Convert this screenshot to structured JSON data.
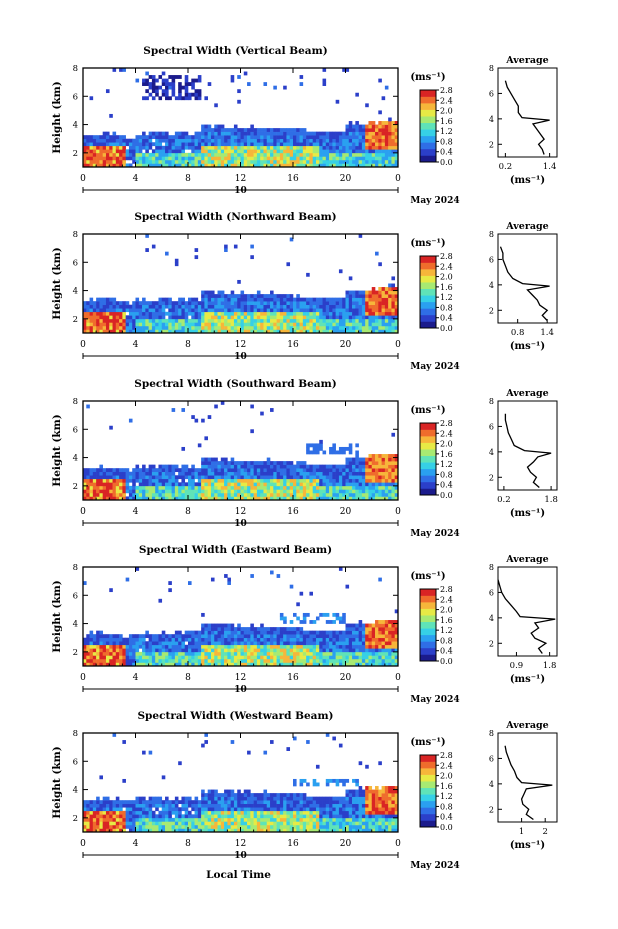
{
  "page": {
    "xaxis_label": "Local Time",
    "date_label": "May 2024",
    "day_marker": "10",
    "colorbar_unit": "(ms⁻¹)",
    "average_title": "Average",
    "average_unit": "(ms⁻¹)",
    "ylabel": "Height (km)"
  },
  "palette": [
    "#1b1b8c",
    "#2b3fc9",
    "#2f6ee6",
    "#2aa0f0",
    "#36d0e6",
    "#5fe3b8",
    "#a7ea72",
    "#e7ea45",
    "#f6b63a",
    "#ef6c2c",
    "#d92424"
  ],
  "chart_data": [
    {
      "type": "heatmap",
      "title": "Spectral Width (Vertical Beam)",
      "xlabel": "Local Time",
      "ylabel": "Height (km)",
      "xlim": [
        0,
        24
      ],
      "ylim": [
        1,
        8
      ],
      "xticks": [
        "0",
        "4",
        "8",
        "12",
        "16",
        "20",
        "0"
      ],
      "yticks": [
        "2",
        "4",
        "6",
        "8"
      ],
      "colorbar": {
        "range": [
          0,
          2.8
        ],
        "ticks": [
          "0.0",
          "0.4",
          "0.8",
          "1.2",
          "1.6",
          "2.0",
          "2.4",
          "2.8"
        ]
      },
      "average": {
        "xticks": [
          "0.2",
          "1.4"
        ],
        "xlim": [
          0,
          1.6
        ],
        "heights": [
          1.2,
          1.6,
          2.0,
          2.4,
          2.8,
          3.2,
          3.6,
          3.9,
          4.1,
          4.5,
          5.0,
          5.5,
          6.0,
          6.5,
          7.0
        ],
        "values": [
          1.25,
          1.2,
          1.1,
          1.25,
          1.15,
          1.05,
          0.95,
          1.4,
          0.65,
          0.55,
          0.55,
          0.45,
          0.35,
          0.25,
          0.2
        ]
      }
    },
    {
      "type": "heatmap",
      "title": "Spectral Width (Northward Beam)",
      "xlabel": "Local Time",
      "ylabel": "Height (km)",
      "xlim": [
        0,
        24
      ],
      "ylim": [
        1,
        8
      ],
      "xticks": [
        "0",
        "4",
        "8",
        "12",
        "16",
        "20",
        "0"
      ],
      "yticks": [
        "2",
        "4",
        "6",
        "8"
      ],
      "colorbar": {
        "range": [
          0,
          2.8
        ],
        "ticks": [
          "0.0",
          "0.4",
          "0.8",
          "1.2",
          "1.6",
          "2.0",
          "2.4",
          "2.8"
        ]
      },
      "average": {
        "xticks": [
          "0.8",
          "1.4"
        ],
        "xlim": [
          0.4,
          1.6
        ],
        "heights": [
          1.2,
          1.6,
          2.0,
          2.4,
          2.8,
          3.2,
          3.6,
          3.9,
          4.1,
          4.5,
          5.0,
          5.5,
          6.0,
          6.5,
          7.0
        ],
        "values": [
          1.4,
          1.3,
          1.4,
          1.25,
          1.2,
          1.1,
          1.0,
          1.45,
          0.9,
          0.7,
          0.6,
          0.55,
          0.5,
          0.5,
          0.45
        ]
      }
    },
    {
      "type": "heatmap",
      "title": "Spectral Width (Southward Beam)",
      "xlabel": "Local Time",
      "ylabel": "Height (km)",
      "xlim": [
        0,
        24
      ],
      "ylim": [
        1,
        8
      ],
      "xticks": [
        "0",
        "4",
        "8",
        "12",
        "16",
        "20",
        "0"
      ],
      "yticks": [
        "2",
        "4",
        "6",
        "8"
      ],
      "colorbar": {
        "range": [
          0,
          2.8
        ],
        "ticks": [
          "0.0",
          "0.4",
          "0.8",
          "1.2",
          "1.6",
          "2.0",
          "2.4",
          "2.8"
        ]
      },
      "average": {
        "xticks": [
          "0.2",
          "1.8"
        ],
        "xlim": [
          0,
          2.0
        ],
        "heights": [
          1.2,
          1.6,
          2.0,
          2.4,
          2.8,
          3.2,
          3.6,
          3.9,
          4.1,
          4.5,
          5.0,
          5.5,
          6.0,
          6.5,
          7.0
        ],
        "values": [
          1.4,
          1.2,
          1.3,
          1.1,
          1.0,
          1.2,
          1.35,
          1.8,
          0.9,
          0.55,
          0.45,
          0.35,
          0.3,
          0.25,
          0.25
        ]
      }
    },
    {
      "type": "heatmap",
      "title": "Spectral Width (Eastward Beam)",
      "xlabel": "Local Time",
      "ylabel": "Height (km)",
      "xlim": [
        0,
        24
      ],
      "ylim": [
        1,
        8
      ],
      "xticks": [
        "0",
        "4",
        "8",
        "12",
        "16",
        "20",
        "0"
      ],
      "yticks": [
        "2",
        "4",
        "6",
        "8"
      ],
      "colorbar": {
        "range": [
          0,
          2.8
        ],
        "ticks": [
          "0.0",
          "0.4",
          "0.8",
          "1.2",
          "1.6",
          "2.0",
          "2.4",
          "2.8"
        ]
      },
      "average": {
        "xticks": [
          "0.9",
          "1.8"
        ],
        "xlim": [
          0.4,
          2.0
        ],
        "heights": [
          1.2,
          1.6,
          2.0,
          2.4,
          2.8,
          3.2,
          3.6,
          3.9,
          4.1,
          4.5,
          5.0,
          5.5,
          6.0,
          6.5,
          7.0
        ],
        "values": [
          1.6,
          1.5,
          1.7,
          1.4,
          1.3,
          1.5,
          1.4,
          1.95,
          1.0,
          0.9,
          0.75,
          0.6,
          0.5,
          0.45,
          0.4
        ]
      }
    },
    {
      "type": "heatmap",
      "title": "Spectral Width (Westward Beam)",
      "xlabel": "Local Time",
      "ylabel": "Height (km)",
      "xlim": [
        0,
        24
      ],
      "ylim": [
        1,
        8
      ],
      "xticks": [
        "0",
        "4",
        "8",
        "12",
        "16",
        "20",
        "0"
      ],
      "yticks": [
        "2",
        "4",
        "6",
        "8"
      ],
      "colorbar": {
        "range": [
          0,
          2.8
        ],
        "ticks": [
          "0.0",
          "0.4",
          "0.8",
          "1.2",
          "1.6",
          "2.0",
          "2.4",
          "2.8"
        ]
      },
      "average": {
        "xticks": [
          "1",
          "2"
        ],
        "xlim": [
          0,
          2.5
        ],
        "heights": [
          1.2,
          1.6,
          2.0,
          2.4,
          2.8,
          3.2,
          3.6,
          3.9,
          4.1,
          4.5,
          5.0,
          5.5,
          6.0,
          6.5,
          7.0
        ],
        "values": [
          1.5,
          1.2,
          1.3,
          1.05,
          1.0,
          1.1,
          1.2,
          2.3,
          1.0,
          0.8,
          0.7,
          0.55,
          0.45,
          0.35,
          0.3
        ]
      }
    }
  ]
}
